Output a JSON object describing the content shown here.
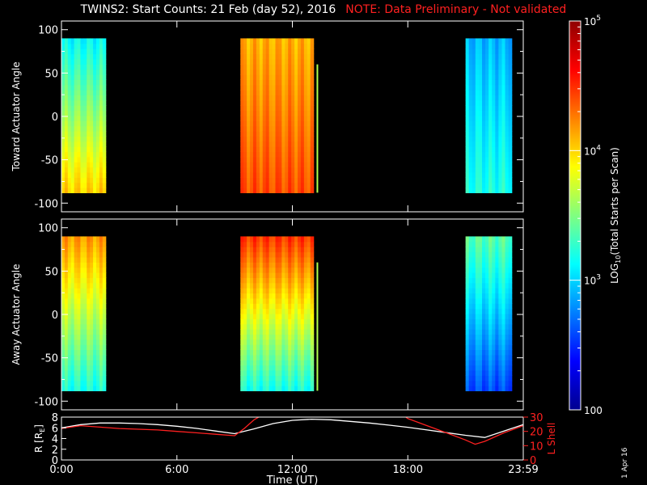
{
  "title": "TWINS2: Start Counts: 21 Feb (day  52), 2016",
  "note": "NOTE: Data Preliminary - Not validated",
  "date_stamp": "1 Apr 16",
  "colors": {
    "background": "#000000",
    "axis": "#ffffff",
    "note": "#ff2020",
    "lshell": "#ff2020",
    "radius": "#ffffff"
  },
  "colorbar": {
    "label": "LOG10(Total Starts per Scan)",
    "label_main": "LOG",
    "label_sub": "10",
    "label_rest": "(Total Starts per Scan)",
    "ticks": [
      {
        "value": 100,
        "label": "100"
      },
      {
        "value": 1000,
        "label": "10^3"
      },
      {
        "value": 10000,
        "label": "10^4"
      },
      {
        "value": 100000,
        "label": "10^5"
      }
    ],
    "scale": "log",
    "range": [
      100,
      100000
    ],
    "colormap": [
      "#00008f",
      "#0000ff",
      "#0080ff",
      "#00ffff",
      "#80ff80",
      "#ffff00",
      "#ff8000",
      "#ff0000",
      "#8f0000"
    ]
  },
  "chart_data": [
    {
      "type": "heatmap",
      "panel": "toward",
      "ylabel": "Toward Actuator Angle",
      "ylim": [
        -110,
        110
      ],
      "yticks": [
        "-100",
        "-50",
        "0",
        "50",
        "100"
      ],
      "xlim_hours": [
        0,
        24
      ],
      "angle_range": [
        -88,
        90
      ],
      "data_intervals_hours": [
        [
          0,
          2.3
        ],
        [
          9.3,
          13.1
        ],
        [
          21.0,
          23.4
        ]
      ],
      "spike_hour": 13.3,
      "typical_log10_counts": {
        "interval_1": {
          "low_angle": 4.0,
          "high_angle": 3.1
        },
        "interval_2": {
          "low_angle": 4.4,
          "high_angle": 4.1
        },
        "interval_3": {
          "low_angle": 3.2,
          "high_angle": 2.9
        }
      }
    },
    {
      "type": "heatmap",
      "panel": "away",
      "ylabel": "Away Actuator Angle",
      "ylim": [
        -110,
        110
      ],
      "yticks": [
        "-100",
        "-50",
        "0",
        "50",
        "100"
      ],
      "xlim_hours": [
        0,
        24
      ],
      "angle_range": [
        -88,
        90
      ],
      "data_intervals_hours": [
        [
          0,
          2.3
        ],
        [
          9.3,
          13.1
        ],
        [
          21.0,
          23.4
        ]
      ],
      "spike_hour": 13.3,
      "typical_log10_counts": {
        "interval_1": {
          "low_angle": 3.2,
          "high_angle": 4.2
        },
        "interval_2": {
          "low_angle": 3.2,
          "high_angle": 4.5
        },
        "interval_3": {
          "low_angle": 2.6,
          "high_angle": 3.4
        }
      }
    },
    {
      "type": "line",
      "panel": "ephemeris",
      "xlabel": "Time (UT)",
      "xticks": [
        "0:00",
        "6:00",
        "12:00",
        "18:00",
        "23:59"
      ],
      "ylabel_left": "R [RE]",
      "ylabel_left_main": "R [R",
      "ylabel_left_sub": "E",
      "ylabel_left_end": "]",
      "ylim_left": [
        0,
        8
      ],
      "yticks_left": [
        "0",
        "2",
        "4",
        "6",
        "8"
      ],
      "ylabel_right": "L Shell",
      "ylim_right": [
        0,
        30
      ],
      "yticks_right": [
        "0",
        "10",
        "20",
        "30"
      ],
      "series": [
        {
          "name": "R [RE]",
          "axis": "left",
          "x": [
            0,
            1,
            2,
            3,
            4,
            5,
            6,
            7,
            8,
            9,
            10,
            11,
            12,
            13,
            14,
            15,
            16,
            17,
            18,
            19,
            20,
            21,
            22,
            23,
            24
          ],
          "values": [
            6.0,
            6.6,
            6.9,
            6.9,
            6.8,
            6.6,
            6.3,
            5.9,
            5.4,
            4.9,
            5.8,
            6.8,
            7.4,
            7.6,
            7.5,
            7.2,
            6.9,
            6.5,
            6.1,
            5.6,
            5.1,
            4.6,
            4.2,
            5.4,
            6.6
          ]
        },
        {
          "name": "L Shell",
          "axis": "right",
          "x": [
            0,
            1,
            2,
            3,
            4,
            5,
            6,
            7,
            8,
            9,
            9.5,
            10,
            10.5,
            17.7,
            18,
            19,
            20,
            21,
            21.5,
            22,
            23,
            24
          ],
          "values": [
            22,
            24,
            23,
            22,
            21.5,
            21,
            20,
            19,
            18,
            17,
            22,
            28,
            32,
            32,
            29,
            24,
            19,
            14,
            11,
            13,
            19,
            24
          ]
        }
      ]
    }
  ]
}
